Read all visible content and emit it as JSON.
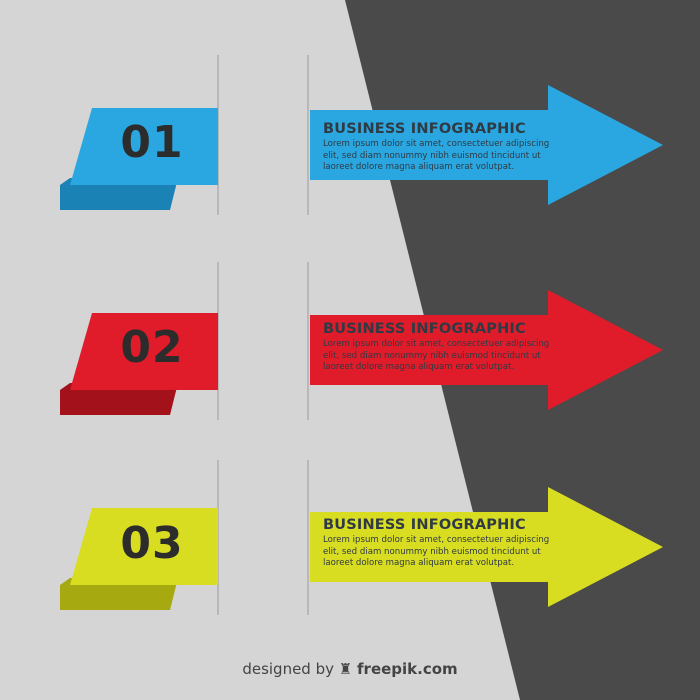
{
  "colors": {
    "light_bg": "#d5d5d5",
    "dark_bg": "#4a4a4a",
    "blue": "#2aa7e0",
    "red": "#e01c2a",
    "yellow": "#d9dd22"
  },
  "steps": [
    {
      "number": "01",
      "title": "BUSINESS INFOGRAPHIC",
      "body": "Lorem ipsum dolor sit amet, consectetuer adipiscing elit, sed diam nonummy nibh euismod tincidunt ut laoreet dolore magna aliquam erat volutpat.",
      "color": "#2aa7e0"
    },
    {
      "number": "02",
      "title": "BUSINESS INFOGRAPHIC",
      "body": "Lorem ipsum dolor sit amet, consectetuer adipiscing elit, sed diam nonummy nibh euismod tincidunt ut laoreet dolore magna aliquam erat volutpat.",
      "color": "#e01c2a"
    },
    {
      "number": "03",
      "title": "BUSINESS INFOGRAPHIC",
      "body": "Lorem ipsum dolor sit amet, consectetuer adipiscing elit, sed diam nonummy nibh euismod tincidunt ut laoreet dolore magna aliquam erat volutpat.",
      "color": "#d9dd22"
    }
  ],
  "credit": {
    "prefix": "designed by",
    "brand": "freepik.com"
  }
}
